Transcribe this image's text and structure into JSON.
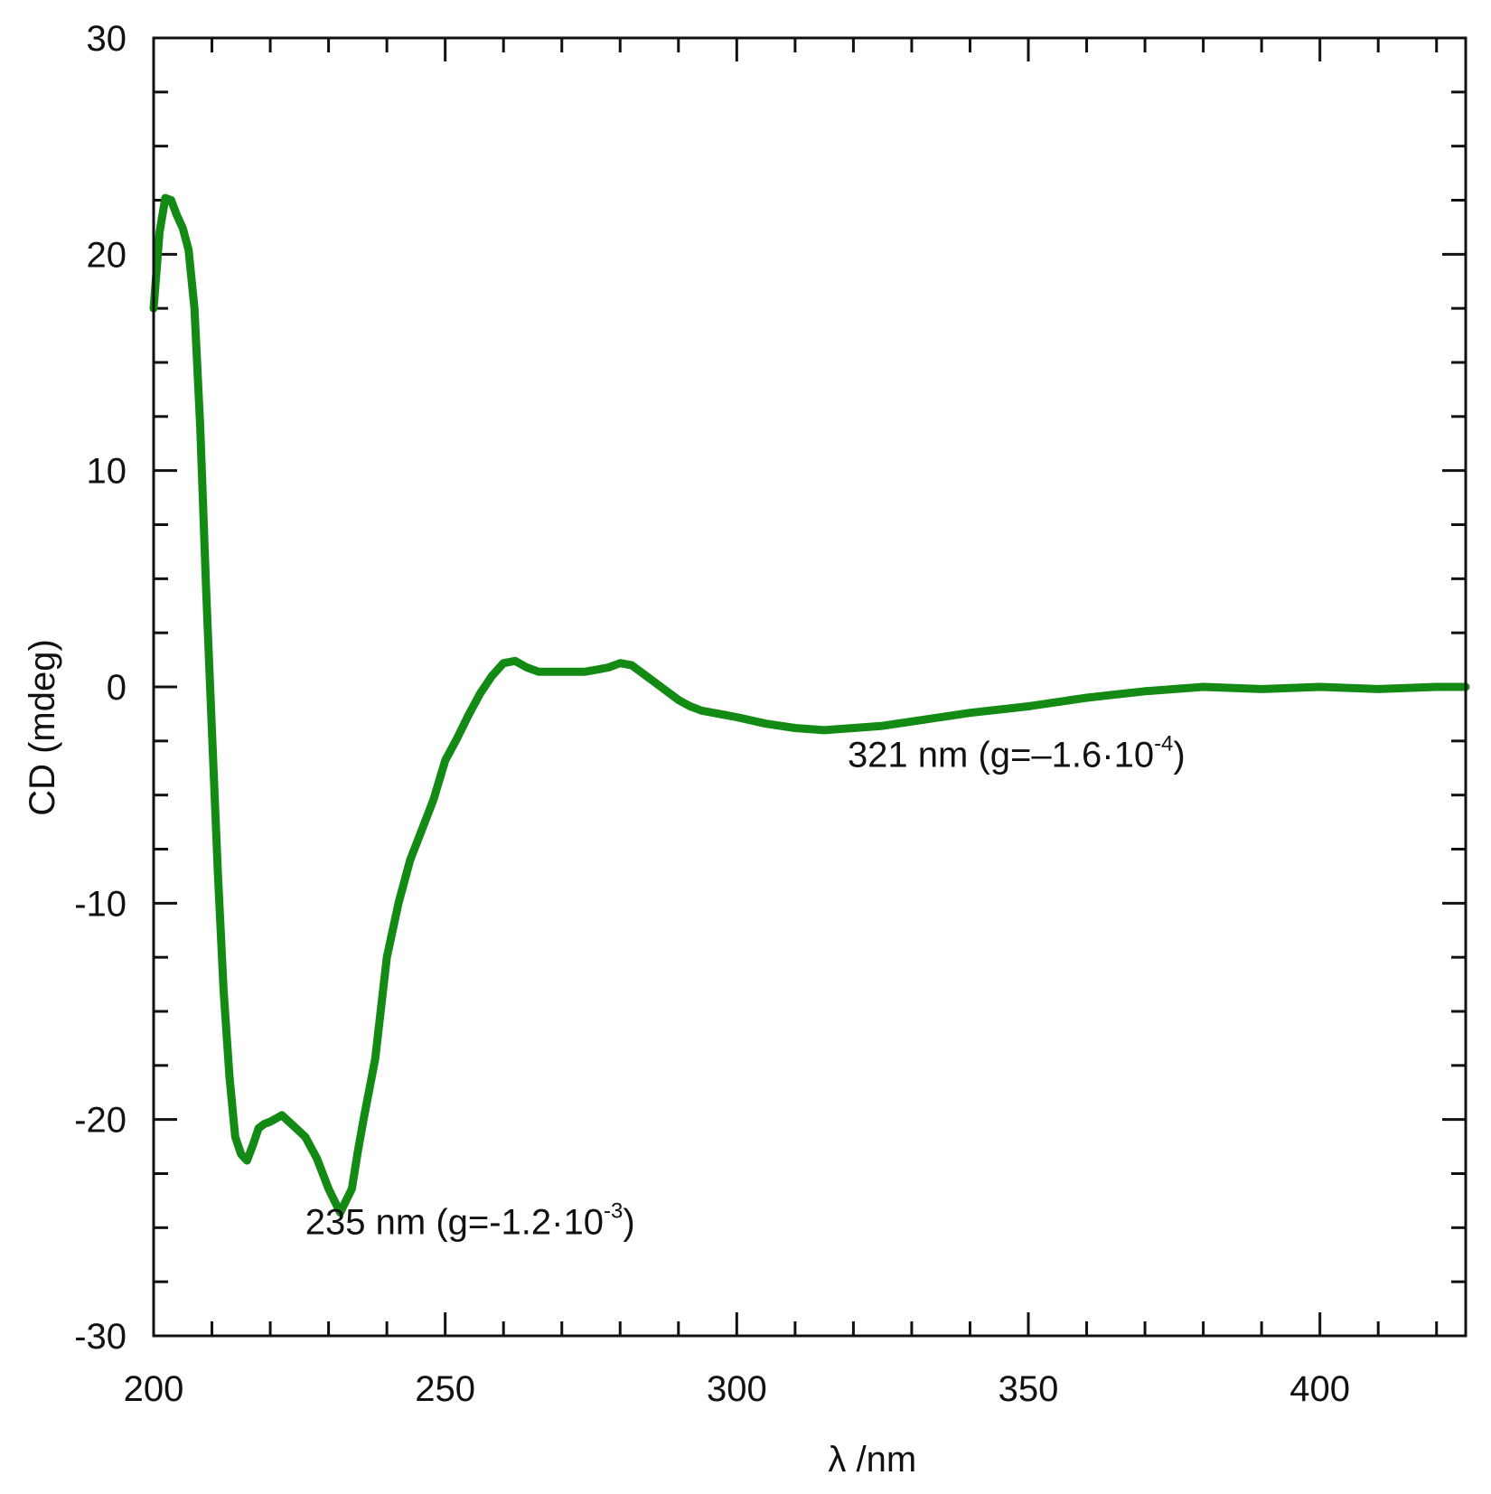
{
  "chart_data": {
    "type": "line",
    "title": "",
    "xlabel": "λ /nm",
    "ylabel": "CD (mdeg)",
    "xlim": [
      200,
      425
    ],
    "ylim": [
      -30,
      30
    ],
    "x_ticks": [
      200,
      250,
      300,
      350,
      400
    ],
    "x_tick_labels": [
      "200",
      "250",
      "300",
      "350",
      "400"
    ],
    "y_ticks": [
      30,
      20,
      10,
      0,
      -10,
      -20,
      -30
    ],
    "y_tick_labels": [
      "30",
      "20",
      "10",
      "0",
      "-10",
      "-20",
      "-30"
    ],
    "grid": false,
    "legend": "none",
    "line_color": "#138a13",
    "series": [
      {
        "x": [
          200,
          201,
          202,
          203,
          204,
          205,
          206,
          207,
          208,
          209,
          210,
          211,
          212,
          213,
          214,
          215,
          216,
          217,
          218,
          219,
          220,
          222,
          224,
          226,
          228,
          230,
          232,
          234,
          235,
          236,
          238,
          240,
          242,
          244,
          246,
          248,
          250,
          252,
          254,
          256,
          258,
          260,
          262,
          264,
          266,
          268,
          270,
          272,
          274,
          276,
          278,
          280,
          282,
          284,
          286,
          288,
          290,
          292,
          294,
          296,
          298,
          300,
          305,
          310,
          315,
          320,
          325,
          330,
          340,
          350,
          360,
          370,
          380,
          390,
          400,
          410,
          420,
          425
        ],
        "y": [
          17.5,
          21.0,
          22.6,
          22.5,
          21.8,
          21.2,
          20.2,
          17.5,
          12.0,
          4.5,
          -2.0,
          -8.5,
          -14.0,
          -18.0,
          -20.8,
          -21.6,
          -21.9,
          -21.2,
          -20.4,
          -20.2,
          -20.1,
          -19.8,
          -20.3,
          -20.8,
          -21.8,
          -23.2,
          -24.3,
          -23.2,
          -21.5,
          -20.0,
          -17.2,
          -12.5,
          -10.0,
          -8.0,
          -6.6,
          -5.2,
          -3.4,
          -2.4,
          -1.3,
          -0.3,
          0.5,
          1.1,
          1.2,
          0.9,
          0.7,
          0.7,
          0.7,
          0.7,
          0.7,
          0.8,
          0.9,
          1.1,
          1.0,
          0.6,
          0.2,
          -0.2,
          -0.6,
          -0.9,
          -1.1,
          -1.2,
          -1.3,
          -1.4,
          -1.7,
          -1.9,
          -2.0,
          -1.9,
          -1.8,
          -1.6,
          -1.2,
          -0.9,
          -0.5,
          -0.2,
          0.0,
          -0.1,
          0.0,
          -0.1,
          0.0,
          0.0
        ]
      }
    ],
    "annotations": [
      {
        "x": 226,
        "y": -25.3,
        "main": "235 nm (g=-1.2·10",
        "sup": "-3",
        "tail": ")"
      },
      {
        "x": 319,
        "y": -3.7,
        "main": "321 nm (g=–1.6·10",
        "sup": "-4",
        "tail": ")"
      }
    ]
  }
}
